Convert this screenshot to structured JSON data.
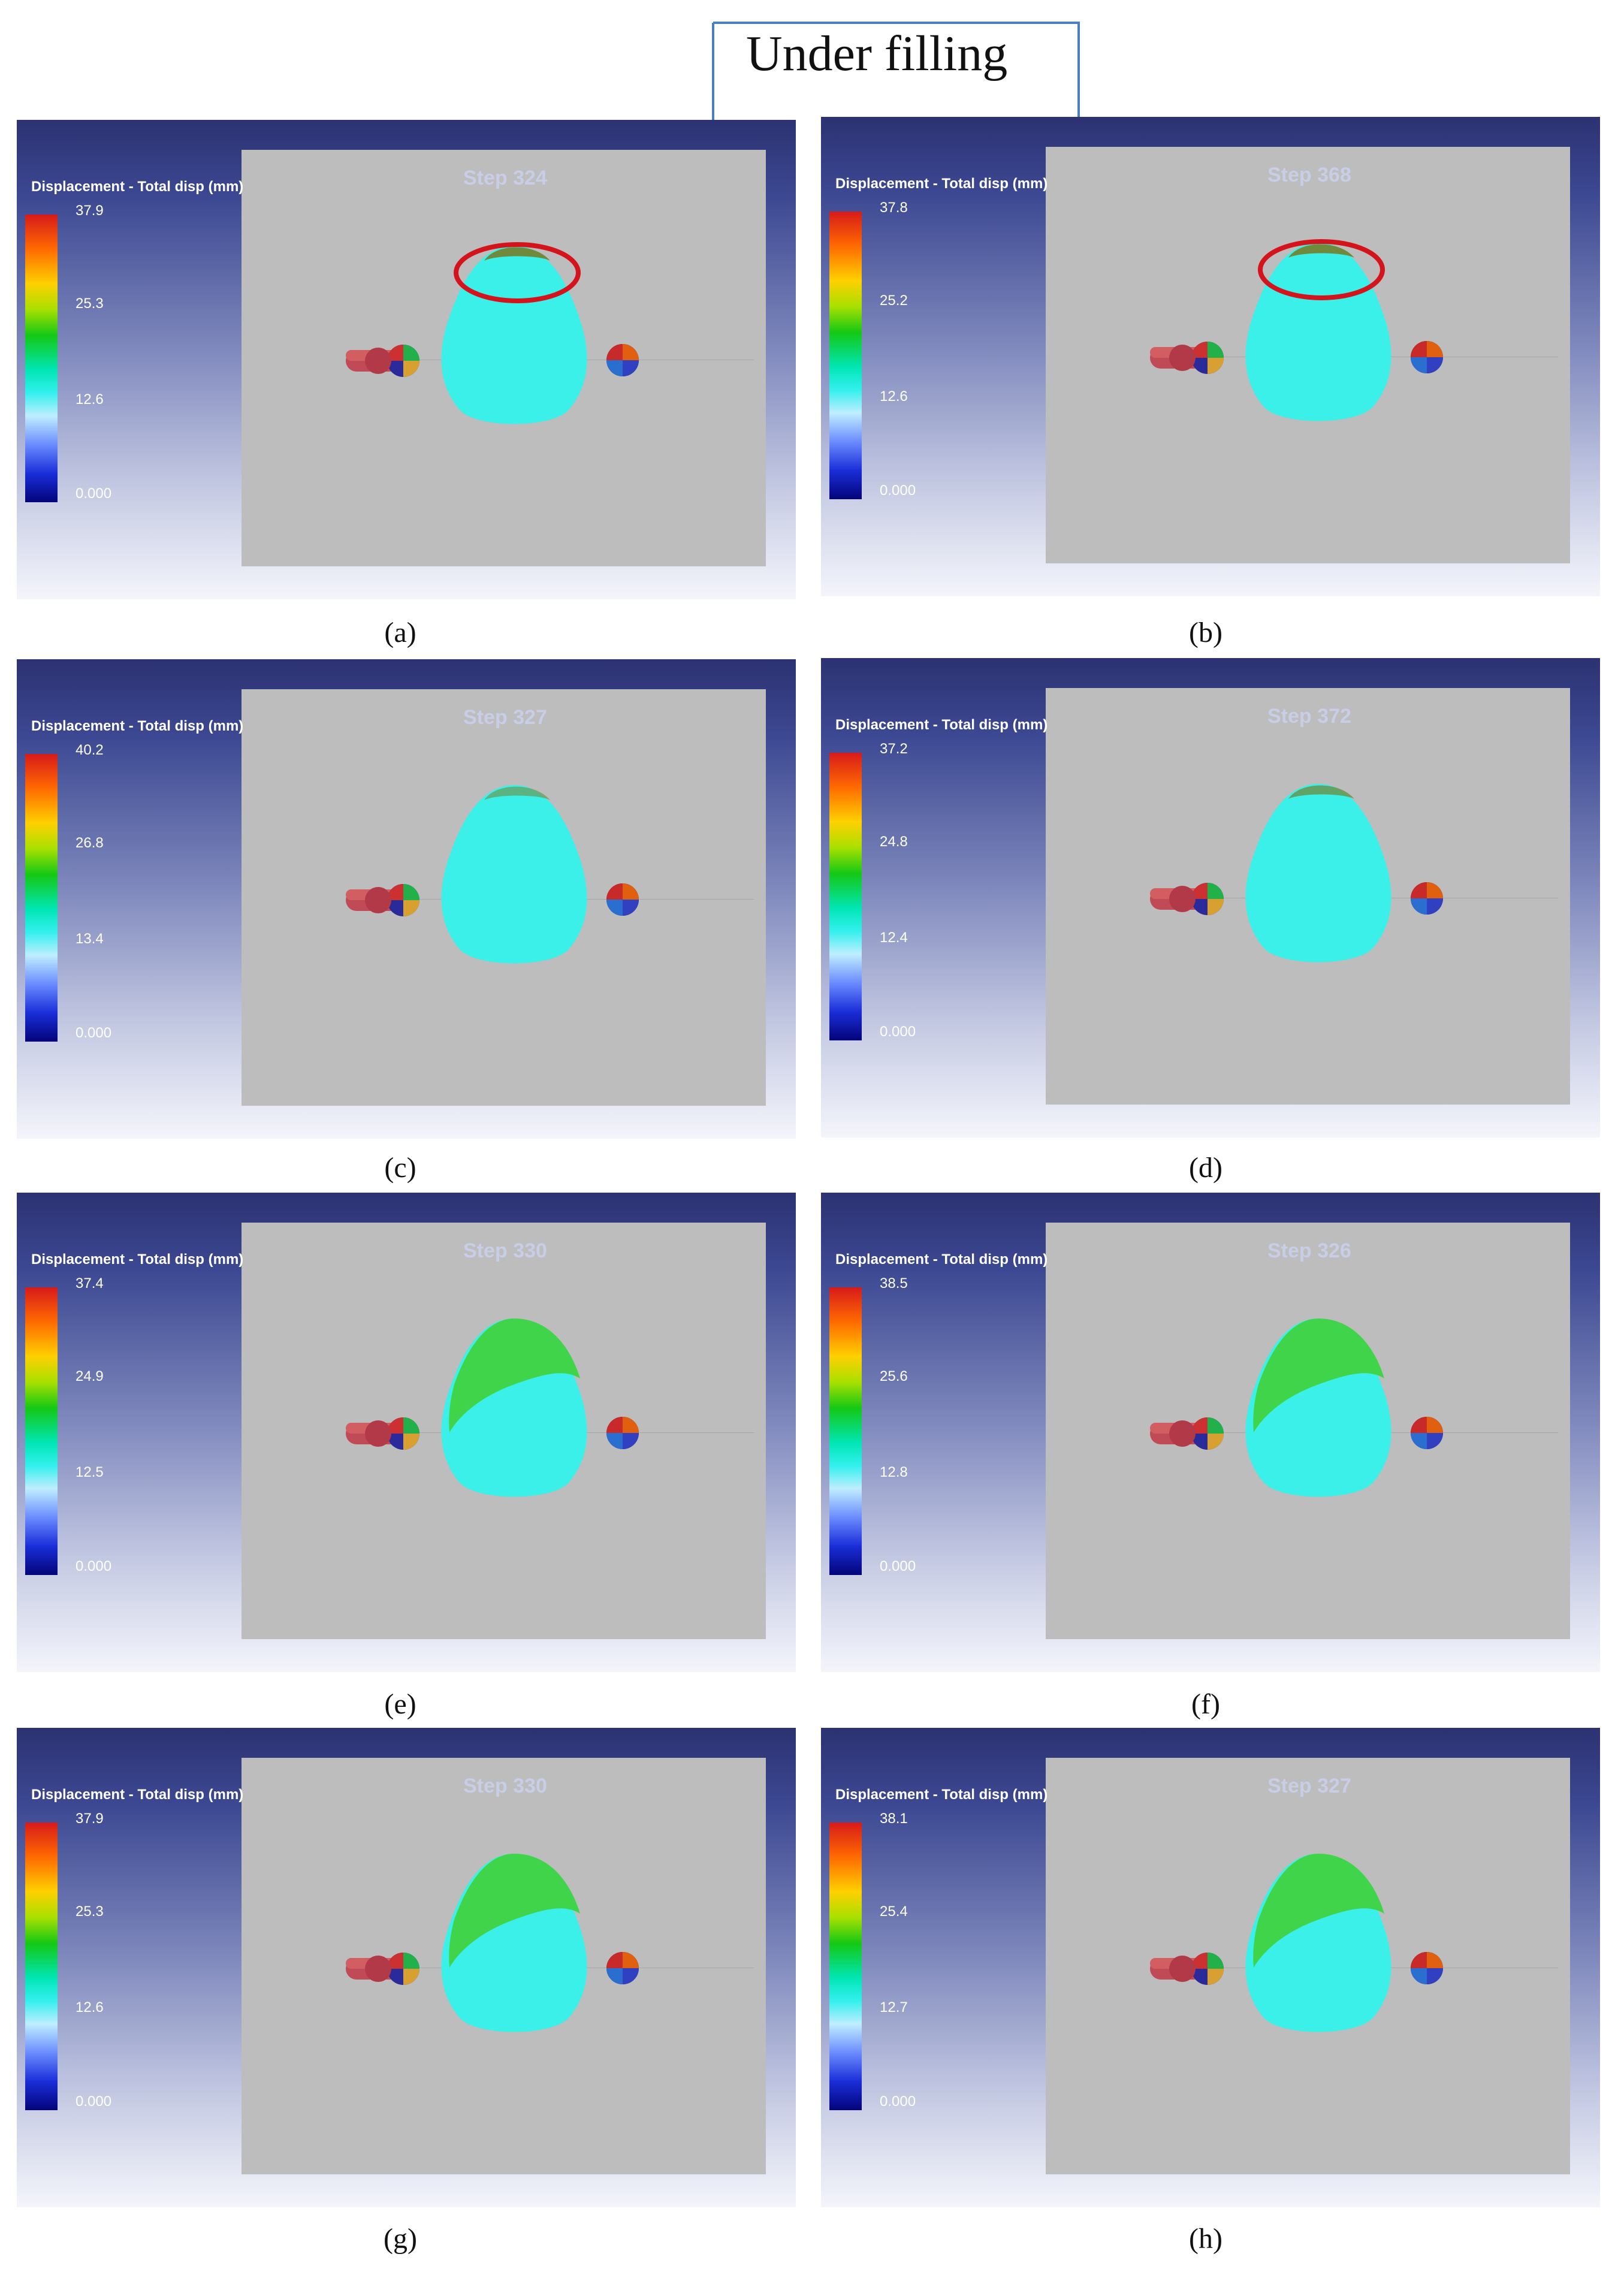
{
  "annotation": {
    "label": "Under filling"
  },
  "legend_title": "Displacement - Total disp (mm)",
  "panels": {
    "a": {
      "caption": "(a)",
      "step": "Step 324",
      "ticks": [
        "37.9",
        "25.3",
        "12.6",
        "0.000"
      ],
      "underfill_highlighted": true
    },
    "b": {
      "caption": "(b)",
      "step": "Step 368",
      "ticks": [
        "37.8",
        "25.2",
        "12.6",
        "0.000"
      ],
      "underfill_highlighted": true
    },
    "c": {
      "caption": "(c)",
      "step": "Step 327",
      "ticks": [
        "40.2",
        "26.8",
        "13.4",
        "0.000"
      ],
      "underfill_highlighted": false
    },
    "d": {
      "caption": "(d)",
      "step": "Step 372",
      "ticks": [
        "37.2",
        "24.8",
        "12.4",
        "0.000"
      ],
      "underfill_highlighted": false
    },
    "e": {
      "caption": "(e)",
      "step": "Step 330",
      "ticks": [
        "37.4",
        "24.9",
        "12.5",
        "0.000"
      ],
      "underfill_highlighted": false
    },
    "f": {
      "caption": "(f)",
      "step": "Step 326",
      "ticks": [
        "38.5",
        "25.6",
        "12.8",
        "0.000"
      ],
      "underfill_highlighted": false
    },
    "g": {
      "caption": "(g)",
      "step": "Step 330",
      "ticks": [
        "37.9",
        "25.3",
        "12.6",
        "0.000"
      ],
      "underfill_highlighted": false
    },
    "h": {
      "caption": "(h)",
      "step": "Step 327",
      "ticks": [
        "38.1",
        "25.4",
        "12.7",
        "0.000"
      ],
      "underfill_highlighted": false
    }
  }
}
